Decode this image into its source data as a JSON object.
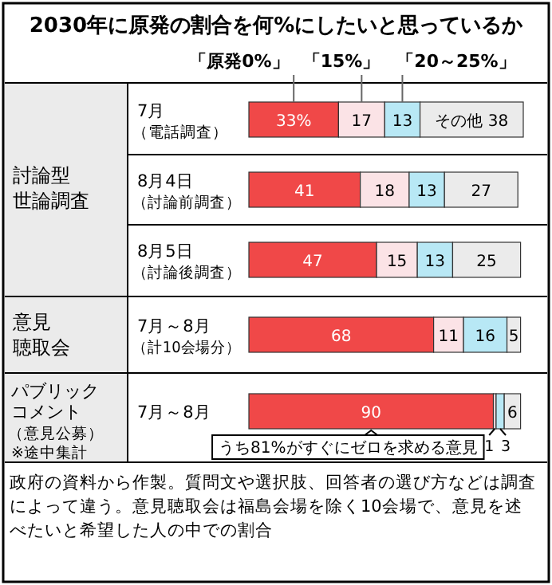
{
  "chart_data": {
    "type": "bar",
    "orientation": "horizontal",
    "stacked": true,
    "title": "2030年に原発の割合を何%にしたいと思っているか",
    "categories": [
      "7月（電話調査）",
      "8月4日（討論前調査）",
      "8月5日（討論後調査）",
      "7月～8月（計10会場分）",
      "7月～8月"
    ],
    "series": [
      {
        "name": "「原発0%」",
        "color": "#f04848",
        "values": [
          33,
          41,
          47,
          68,
          90
        ],
        "value_labels": [
          "33%",
          "41",
          "47",
          "68",
          "90"
        ]
      },
      {
        "name": "「15%」",
        "color": "#fbe3e6",
        "values": [
          17,
          18,
          15,
          11,
          1
        ],
        "value_labels": [
          "17",
          "18",
          "15",
          "11",
          "1"
        ]
      },
      {
        "name": "「20～25%」",
        "color": "#b8e8f5",
        "values": [
          13,
          13,
          13,
          16,
          3
        ],
        "value_labels": [
          "13",
          "13",
          "13",
          "16",
          "3"
        ]
      },
      {
        "color": "#ebebeb",
        "values": [
          38,
          27,
          25,
          5,
          6
        ],
        "value_labels": [
          "その他 38",
          "27",
          "25",
          "5",
          "6"
        ]
      }
    ],
    "legend": "top",
    "annotations": [
      "討論型世論調査",
      "意見聴取会",
      "パブリックコメント（意見公募）※途中集計",
      "うち81%がすぐにゼロを求める意見",
      "政府の資料から作製。質問文や選択肢、回答者の選び方などは調査によって違う。意見聴取会は福島会場を除く10会場で、意見を述べたいと希望した人の中での割合"
    ]
  }
}
